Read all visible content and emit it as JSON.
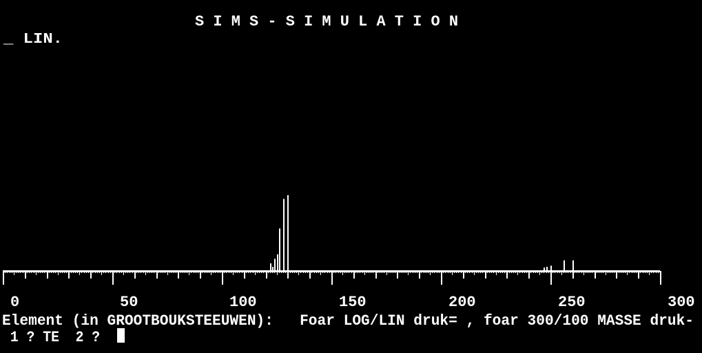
{
  "header": {
    "title": "S I M S  - S I M U L A T I O N",
    "mode_indicator": "_ LIN."
  },
  "prompt": {
    "line1": "Element (in GROOTBOUKSTEEUWEN):   Foar LOG/LIN druk= , foar 300/100 MASSE druk-",
    "line2": " 1 ? TE  2 ? "
  },
  "colors": {
    "background": "#000000",
    "foreground": "#ffffff"
  },
  "chart_data": {
    "type": "bar",
    "scale": "linear",
    "xlim": [
      0,
      300
    ],
    "x_ticks": [
      "0",
      "50",
      "100",
      "150",
      "200",
      "250",
      "300"
    ],
    "x": [
      122,
      123,
      124,
      125,
      126,
      128,
      130,
      247,
      248,
      250,
      256,
      260
    ],
    "values": [
      10,
      5.5,
      16,
      22,
      56,
      95,
      100,
      4.5,
      5.5,
      7,
      14,
      14
    ],
    "ylim": [
      0,
      100
    ]
  }
}
